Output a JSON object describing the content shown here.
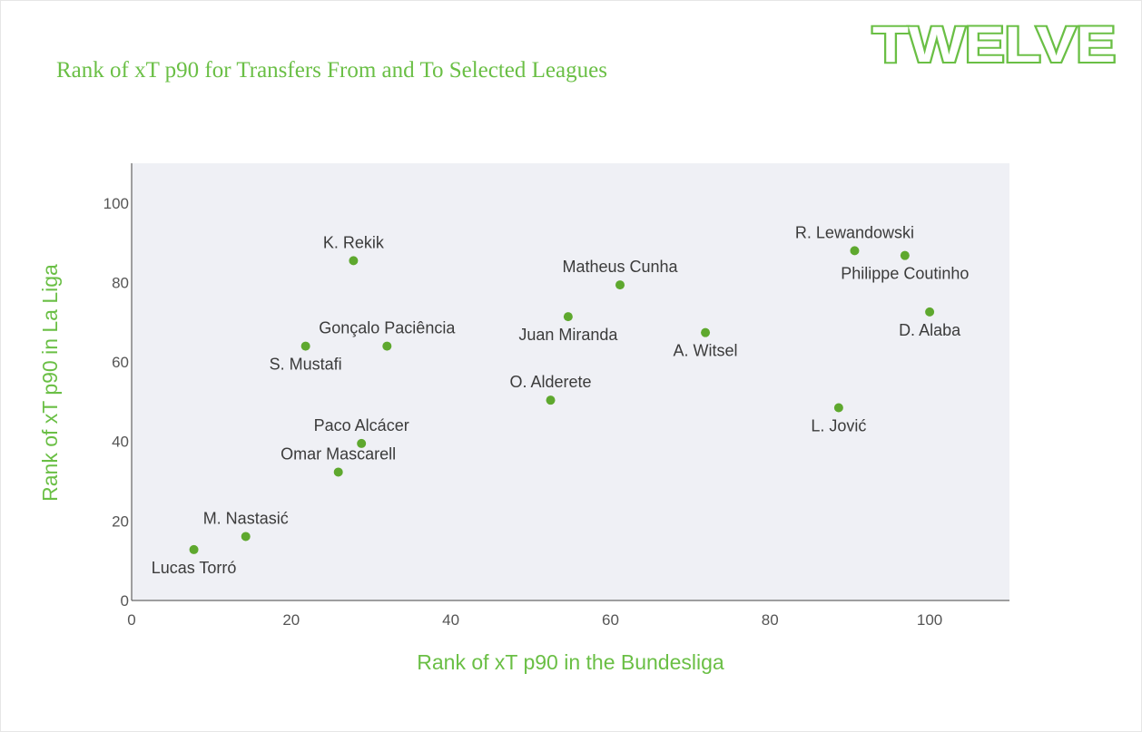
{
  "brand": {
    "logo_text": "TWELVE",
    "accent_color": "#6abf45",
    "plot_bg": "#eff0f5",
    "marker_color": "#5ea82e"
  },
  "chart_data": {
    "type": "scatter",
    "title": "Rank of xT p90 for Transfers From and To Selected Leagues",
    "xlabel": "Rank of xT p90 in the Bundesliga",
    "ylabel": "Rank of xT p90 in La Liga",
    "xlim": [
      0,
      110
    ],
    "ylim": [
      0,
      110
    ],
    "xticks": [
      0,
      20,
      40,
      60,
      80,
      100
    ],
    "yticks": [
      0,
      20,
      40,
      60,
      80,
      100
    ],
    "grid": false,
    "points": [
      {
        "label": "K. Rekik",
        "x": 27.8,
        "y": 85.5,
        "label_pos": "above"
      },
      {
        "label": "Gonçalo Paciência",
        "x": 32.0,
        "y": 64.0,
        "label_pos": "above"
      },
      {
        "label": "S. Mustafi",
        "x": 21.8,
        "y": 64.0,
        "label_pos": "below"
      },
      {
        "label": "Paco Alcácer",
        "x": 28.8,
        "y": 39.5,
        "label_pos": "above"
      },
      {
        "label": "Omar Mascarell",
        "x": 25.9,
        "y": 32.3,
        "label_pos": "above"
      },
      {
        "label": "M. Nastasić",
        "x": 14.3,
        "y": 16.1,
        "label_pos": "above"
      },
      {
        "label": "Lucas Torró",
        "x": 7.8,
        "y": 12.8,
        "label_pos": "below"
      },
      {
        "label": "Matheus Cunha",
        "x": 61.2,
        "y": 79.4,
        "label_pos": "above"
      },
      {
        "label": "Juan Miranda",
        "x": 54.7,
        "y": 71.4,
        "label_pos": "below"
      },
      {
        "label": "O. Alderete",
        "x": 52.5,
        "y": 50.4,
        "label_pos": "above"
      },
      {
        "label": "A. Witsel",
        "x": 71.9,
        "y": 67.4,
        "label_pos": "below"
      },
      {
        "label": "R. Lewandowski",
        "x": 90.6,
        "y": 88.0,
        "label_pos": "above"
      },
      {
        "label": "Philippe Coutinho",
        "x": 96.9,
        "y": 86.8,
        "label_pos": "below"
      },
      {
        "label": "D. Alaba",
        "x": 100.0,
        "y": 72.6,
        "label_pos": "below"
      },
      {
        "label": "L. Jović",
        "x": 88.6,
        "y": 48.5,
        "label_pos": "below"
      }
    ]
  }
}
